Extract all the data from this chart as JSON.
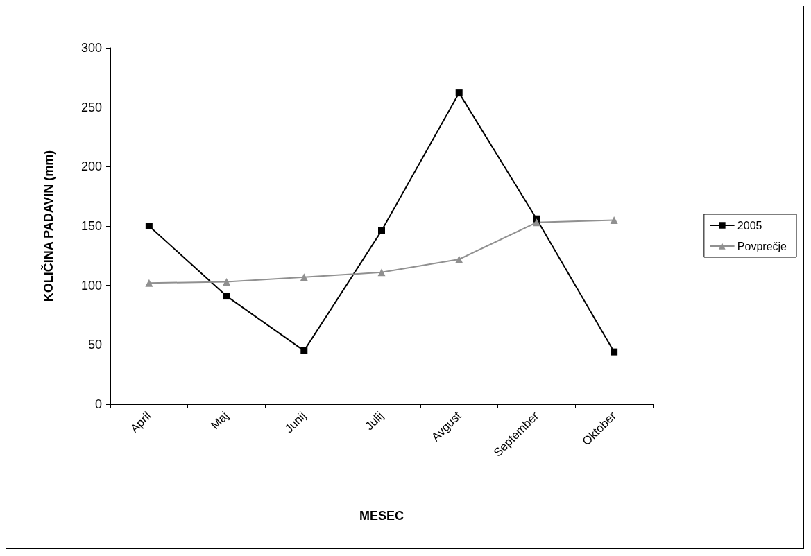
{
  "chart_data": {
    "type": "line",
    "xlabel": "MESEC",
    "ylabel": "KOLIČINA PADAVIN (mm)",
    "categories": [
      "April",
      "Maj",
      "Junij",
      "Julij",
      "Avgust",
      "September",
      "Oktober"
    ],
    "series": [
      {
        "name": "2005",
        "color": "#000000",
        "marker": "square",
        "values": [
          150,
          91,
          45,
          146,
          262,
          156,
          44
        ]
      },
      {
        "name": "Povprečje",
        "color": "#909090",
        "marker": "triangle",
        "values": [
          102,
          103,
          107,
          111,
          122,
          153,
          155
        ]
      }
    ],
    "ylim": [
      0,
      300
    ],
    "yticks": [
      0,
      50,
      100,
      150,
      200,
      250,
      300
    ],
    "grid": false,
    "legend": "right",
    "line_style": "solid"
  }
}
